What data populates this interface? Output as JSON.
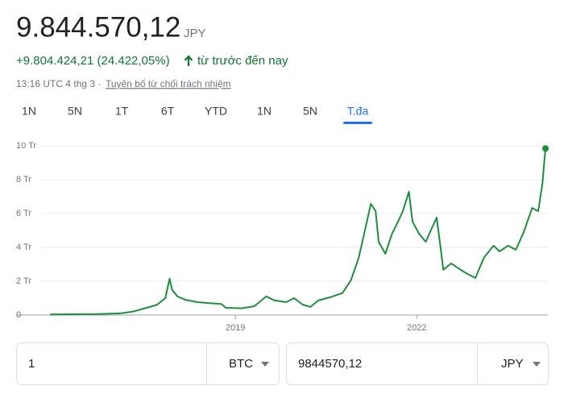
{
  "header": {
    "price": "9.844.570,12",
    "currency": "JPY",
    "change": "+9.804.424,21 (24.422,05%)",
    "change_period": "từ trước đến nay",
    "timestamp": "13:16 UTC 4 thg 3 ·",
    "disclaimer": "Tuyên bố từ chối trách nhiệm"
  },
  "tabs": {
    "items": [
      "1N",
      "5N",
      "1T",
      "6T",
      "YTD",
      "1N",
      "5N",
      "T.đa"
    ],
    "selected": 7
  },
  "chart_data": {
    "type": "line",
    "color": "#1e8e3e",
    "grid": true,
    "x": [
      2015.93,
      2016.71,
      2017.1,
      2017.3,
      2017.5,
      2017.7,
      2017.84,
      2017.91,
      2017.95,
      2018.04,
      2018.17,
      2018.37,
      2018.57,
      2018.77,
      2018.84,
      2019.1,
      2019.31,
      2019.51,
      2019.64,
      2019.84,
      2019.97,
      2020.11,
      2020.24,
      2020.37,
      2020.57,
      2020.77,
      2020.91,
      2021.04,
      2021.13,
      2021.24,
      2021.32,
      2021.37,
      2021.48,
      2021.59,
      2021.69,
      2021.77,
      2021.87,
      2021.93,
      2022.04,
      2022.15,
      2022.24,
      2022.33,
      2022.44,
      2022.57,
      2022.71,
      2022.84,
      2022.97,
      2023.11,
      2023.27,
      2023.37,
      2023.51,
      2023.64,
      2023.77,
      2023.91,
      2024.01,
      2024.08,
      2024.13
    ],
    "series": [
      {
        "values": [
          40146,
          50000,
          100000,
          200000,
          400000,
          600000,
          1000000,
          2150000,
          1500000,
          1100000,
          900000,
          760000,
          700000,
          650000,
          430000,
          400000,
          520000,
          1100000,
          870000,
          760000,
          1000000,
          620000,
          480000,
          860000,
          1050000,
          1300000,
          2050000,
          3380000,
          4800000,
          6570000,
          6140000,
          4330000,
          3620000,
          4800000,
          5520000,
          6140000,
          7290000,
          5520000,
          4800000,
          4330000,
          5050000,
          5760000,
          2670000,
          3050000,
          2710000,
          2430000,
          2190000,
          3380000,
          4100000,
          3760000,
          4100000,
          3860000,
          4900000,
          6330000,
          6140000,
          7760000,
          9844570
        ]
      }
    ],
    "xlim": [
      2015.37,
      2024.17
    ],
    "xticks": [
      2019,
      2022
    ],
    "ylim": [
      0,
      10000000
    ],
    "yticks": [
      0,
      {
        "value": 2000000,
        "label": "2 Tr"
      },
      {
        "value": 4000000,
        "label": "4 Tr"
      },
      {
        "value": 6000000,
        "label": "6 Tr"
      },
      {
        "value": 8000000,
        "label": "8 Tr"
      },
      {
        "value": 10000000,
        "label": "10 Tr"
      }
    ]
  },
  "converter": {
    "from_amount": "1",
    "from_currency": "BTC",
    "to_amount": "9844570,12",
    "to_currency": "JPY"
  }
}
